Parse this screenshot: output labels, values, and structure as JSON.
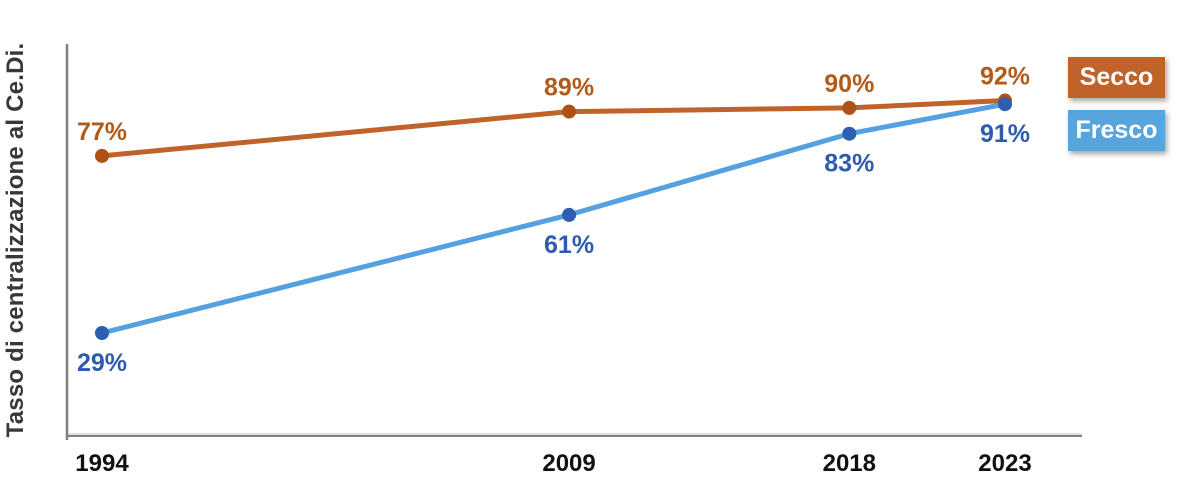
{
  "chart_data": {
    "type": "line",
    "title": "",
    "ylabel": "Tasso di centralizzazione al Ce.Di.",
    "xlabel": "",
    "x": [
      1994,
      2009,
      2018,
      2023
    ],
    "x_tick_labels": [
      "1994",
      "2009",
      "2018",
      "2023"
    ],
    "ylim": [
      0,
      100
    ],
    "grid": false,
    "axis_color": "#808080",
    "axis_highlight_color": "#BFBFBF",
    "tick_color": "#111111",
    "legend_position": "right",
    "legend_text_color": "#FFFFFF",
    "series": [
      {
        "name": "Secco",
        "values": [
          77,
          89,
          90,
          92
        ],
        "data_labels": [
          "77%",
          "89%",
          "90%",
          "92%"
        ],
        "label_position": "above",
        "line_color": "#C0632B",
        "marker_color": "#AC5217",
        "label_color": "#B45A17",
        "legend_color": "#C0632B"
      },
      {
        "name": "Fresco",
        "values": [
          29,
          61,
          83,
          91
        ],
        "data_labels": [
          "29%",
          "61%",
          "83%",
          "91%"
        ],
        "label_position": "below",
        "line_color": "#55A0E0",
        "marker_color": "#2E5EB2",
        "label_color": "#2D5BB0",
        "legend_color": "#58A4DC"
      }
    ]
  }
}
